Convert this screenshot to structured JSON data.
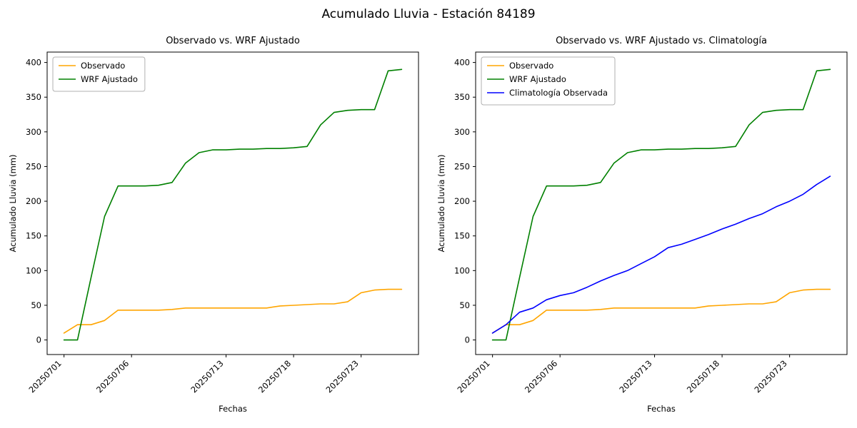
{
  "figure": {
    "title": "Acumulado Lluvia - Estación 84189"
  },
  "chart_data": [
    {
      "type": "line",
      "title": "Observado vs. WRF Ajustado",
      "xlabel": "Fechas",
      "ylabel": "Acumulado Lluvia (mm)",
      "ylim": [
        -21,
        415
      ],
      "yticks": [
        0,
        50,
        100,
        150,
        200,
        250,
        300,
        350,
        400
      ],
      "x": [
        "20250701",
        "20250702",
        "20250703",
        "20250704",
        "20250705",
        "20250706",
        "20250707",
        "20250708",
        "20250709",
        "20250710",
        "20250711",
        "20250712",
        "20250713",
        "20250714",
        "20250715",
        "20250716",
        "20250717",
        "20250718",
        "20250719",
        "20250720",
        "20250721",
        "20250722",
        "20250723",
        "20250724",
        "20250725",
        "20250726"
      ],
      "xticks": [
        "20250701",
        "20250706",
        "20250713",
        "20250718",
        "20250723"
      ],
      "legend_position": "upper left",
      "grid": false,
      "series": [
        {
          "name": "Observado",
          "color": "#ffa500",
          "values": [
            10,
            22,
            22,
            28,
            43,
            43,
            43,
            43,
            44,
            46,
            46,
            46,
            46,
            46,
            46,
            46,
            49,
            50,
            51,
            52,
            52,
            55,
            68,
            72,
            73,
            73
          ]
        },
        {
          "name": "WRF Ajustado",
          "color": "#008000",
          "values": [
            0,
            0,
            90,
            178,
            222,
            222,
            222,
            223,
            227,
            255,
            270,
            274,
            274,
            275,
            275,
            276,
            276,
            277,
            279,
            310,
            328,
            331,
            332,
            332,
            388,
            390
          ]
        }
      ]
    },
    {
      "type": "line",
      "title": "Observado vs. WRF Ajustado vs. Climatología",
      "xlabel": "Fechas",
      "ylabel": "Acumulado Lluvia (mm)",
      "ylim": [
        -21,
        415
      ],
      "yticks": [
        0,
        50,
        100,
        150,
        200,
        250,
        300,
        350,
        400
      ],
      "x": [
        "20250701",
        "20250702",
        "20250703",
        "20250704",
        "20250705",
        "20250706",
        "20250707",
        "20250708",
        "20250709",
        "20250710",
        "20250711",
        "20250712",
        "20250713",
        "20250714",
        "20250715",
        "20250716",
        "20250717",
        "20250718",
        "20250719",
        "20250720",
        "20250721",
        "20250722",
        "20250723",
        "20250724",
        "20250725",
        "20250726"
      ],
      "xticks": [
        "20250701",
        "20250706",
        "20250713",
        "20250718",
        "20250723"
      ],
      "legend_position": "upper left",
      "grid": false,
      "series": [
        {
          "name": "Observado",
          "color": "#ffa500",
          "values": [
            10,
            22,
            22,
            28,
            43,
            43,
            43,
            43,
            44,
            46,
            46,
            46,
            46,
            46,
            46,
            46,
            49,
            50,
            51,
            52,
            52,
            55,
            68,
            72,
            73,
            73
          ]
        },
        {
          "name": "WRF Ajustado",
          "color": "#008000",
          "values": [
            0,
            0,
            90,
            178,
            222,
            222,
            222,
            223,
            227,
            255,
            270,
            274,
            274,
            275,
            275,
            276,
            276,
            277,
            279,
            310,
            328,
            331,
            332,
            332,
            388,
            390
          ]
        },
        {
          "name": "Climatología Observada",
          "color": "#0000ff",
          "values": [
            10,
            22,
            40,
            46,
            58,
            64,
            68,
            76,
            85,
            93,
            100,
            110,
            120,
            133,
            138,
            145,
            152,
            160,
            167,
            175,
            182,
            192,
            200,
            210,
            224,
            236
          ]
        }
      ]
    }
  ]
}
